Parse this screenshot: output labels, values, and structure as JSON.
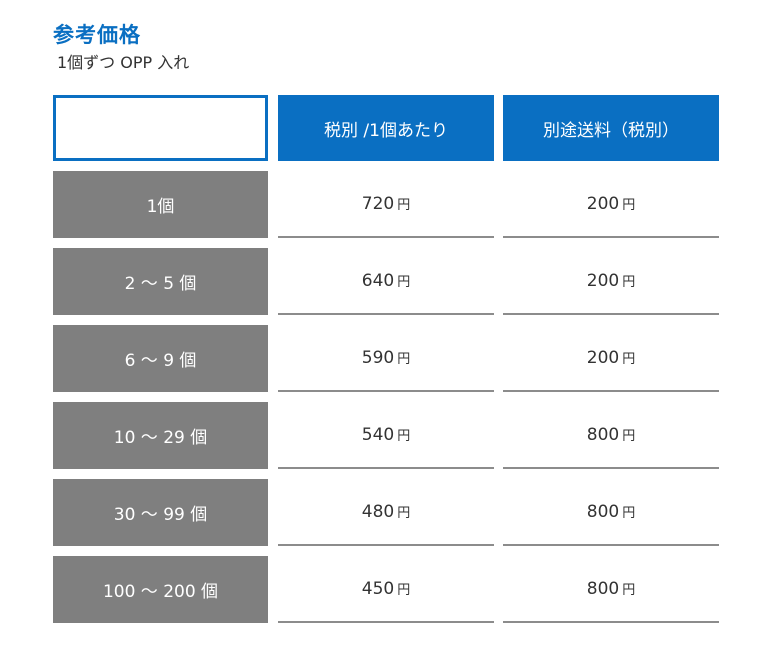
{
  "title": "参考価格",
  "subtitle": "1個ずつ OPP 入れ",
  "table": {
    "headers": [
      "税別 /1個あたり",
      "別途送料（税別）"
    ],
    "unit": "円",
    "rows": [
      {
        "qty": "1個",
        "price": "720",
        "shipping": "200"
      },
      {
        "qty": "2 ～ 5 個",
        "price": "640",
        "shipping": "200"
      },
      {
        "qty": "6 ～ 9 個",
        "price": "590",
        "shipping": "200"
      },
      {
        "qty": "10 ～ 29 個",
        "price": "540",
        "shipping": "800"
      },
      {
        "qty": "30 ～ 99 個",
        "price": "480",
        "shipping": "800"
      },
      {
        "qty": "100 ～ 200 個",
        "price": "450",
        "shipping": "800"
      }
    ]
  }
}
